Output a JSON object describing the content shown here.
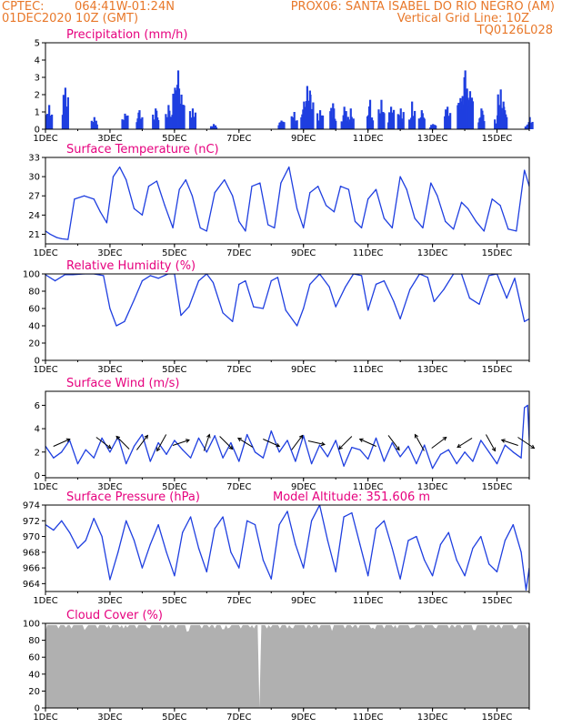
{
  "header": {
    "line1_left": "CPTEC:",
    "line1_coords": "064:41W-01:24N",
    "line1_right": "PROX06: SANTA ISABEL DO RIO NEGRO (AM)",
    "line2_left": "01DEC2020 10Z (GMT)",
    "line2_right": "Vertical Grid Line: 10Z",
    "line3_right": "TQ0126L028"
  },
  "colors": {
    "header": "#e8782a",
    "title": "#e6007e",
    "series": "#1f3fe0",
    "cloud": "#b0b0b0",
    "axis": "#000000"
  },
  "x_axis": {
    "tick_labels": [
      "1DEC",
      "3DEC",
      "5DEC",
      "7DEC",
      "9DEC",
      "11DEC",
      "13DEC",
      "15DEC"
    ],
    "tick_days": [
      0,
      2,
      4,
      6,
      8,
      10,
      12,
      14
    ],
    "range_days": [
      0,
      15
    ]
  },
  "chart_data": [
    {
      "type": "bar",
      "title": "Precipitation (mm/h)",
      "ylim": [
        0,
        5
      ],
      "yticks": [
        0,
        1,
        2,
        3,
        4,
        5
      ],
      "bursts": [
        {
          "day": 0.1,
          "peak": 1.4
        },
        {
          "day": 0.6,
          "peak": 2.4
        },
        {
          "day": 1.5,
          "peak": 0.7
        },
        {
          "day": 2.45,
          "peak": 0.9
        },
        {
          "day": 2.9,
          "peak": 1.1
        },
        {
          "day": 3.4,
          "peak": 1.2
        },
        {
          "day": 3.8,
          "peak": 1.4
        },
        {
          "day": 4.0,
          "peak": 2.4
        },
        {
          "day": 4.1,
          "peak": 3.4
        },
        {
          "day": 4.2,
          "peak": 2.0
        },
        {
          "day": 4.55,
          "peak": 1.2
        },
        {
          "day": 5.2,
          "peak": 0.3
        },
        {
          "day": 7.3,
          "peak": 0.5
        },
        {
          "day": 7.7,
          "peak": 1.0
        },
        {
          "day": 8.0,
          "peak": 1.6
        },
        {
          "day": 8.1,
          "peak": 2.5
        },
        {
          "day": 8.2,
          "peak": 2.0
        },
        {
          "day": 8.5,
          "peak": 1.1
        },
        {
          "day": 8.9,
          "peak": 1.5
        },
        {
          "day": 9.25,
          "peak": 1.3
        },
        {
          "day": 9.45,
          "peak": 1.2
        },
        {
          "day": 10.05,
          "peak": 1.7
        },
        {
          "day": 10.4,
          "peak": 1.7
        },
        {
          "day": 10.7,
          "peak": 1.3
        },
        {
          "day": 11.0,
          "peak": 1.2
        },
        {
          "day": 11.35,
          "peak": 1.6
        },
        {
          "day": 11.65,
          "peak": 1.1
        },
        {
          "day": 12.0,
          "peak": 0.3
        },
        {
          "day": 12.45,
          "peak": 1.3
        },
        {
          "day": 12.85,
          "peak": 1.8
        },
        {
          "day": 13.0,
          "peak": 3.4
        },
        {
          "day": 13.15,
          "peak": 2.2
        },
        {
          "day": 13.5,
          "peak": 1.2
        },
        {
          "day": 14.0,
          "peak": 0.8
        },
        {
          "day": 14.1,
          "peak": 2.3
        },
        {
          "day": 14.2,
          "peak": 1.3
        },
        {
          "day": 14.95,
          "peak": 0.2
        },
        {
          "day": 15.0,
          "peak": 0.7
        }
      ]
    },
    {
      "type": "line",
      "title": "Surface Temperature (nC)",
      "ylim": [
        19.5,
        33
      ],
      "yticks": [
        21,
        24,
        27,
        30,
        33
      ],
      "tick_format": "int",
      "x": [
        0,
        0.15,
        0.35,
        0.5,
        0.7,
        0.9,
        1.2,
        1.5,
        1.7,
        1.9,
        2.1,
        2.3,
        2.5,
        2.75,
        3.0,
        3.2,
        3.45,
        3.7,
        3.95,
        4.15,
        4.35,
        4.55,
        4.8,
        5.0,
        5.25,
        5.55,
        5.8,
        6.0,
        6.2,
        6.4,
        6.65,
        6.9,
        7.1,
        7.3,
        7.55,
        7.8,
        8.0,
        8.2,
        8.45,
        8.7,
        8.95,
        9.15,
        9.4,
        9.6,
        9.8,
        10.0,
        10.25,
        10.5,
        10.75,
        11.0,
        11.2,
        11.45,
        11.7,
        11.95,
        12.15,
        12.4,
        12.65,
        12.9,
        13.1,
        13.35,
        13.6,
        13.85,
        14.1,
        14.35,
        14.6,
        14.85,
        15.0
      ],
      "y": [
        21.5,
        21.0,
        20.5,
        20.3,
        20.2,
        26.5,
        27.0,
        26.5,
        24.5,
        22.8,
        30.0,
        31.5,
        29.5,
        25.0,
        24.0,
        28.5,
        29.3,
        25.5,
        22.0,
        28.0,
        29.5,
        27.0,
        22.0,
        21.5,
        27.5,
        29.5,
        27.0,
        23.0,
        21.5,
        28.5,
        29.0,
        22.5,
        22.0,
        29.0,
        31.5,
        25.0,
        22.0,
        27.5,
        28.5,
        25.5,
        24.5,
        28.5,
        28.0,
        23.0,
        22.0,
        26.5,
        28.0,
        23.5,
        22.0,
        30.0,
        28.0,
        23.5,
        22.0,
        29.0,
        27.0,
        23.0,
        21.8,
        26.0,
        25.0,
        23.0,
        21.5,
        26.5,
        25.5,
        21.8,
        21.5,
        31.0,
        28.5
      ]
    },
    {
      "type": "line",
      "title": "Relative Humidity (%)",
      "ylim": [
        0,
        100
      ],
      "yticks": [
        0,
        20,
        40,
        60,
        80,
        100
      ],
      "tick_format": "int",
      "x": [
        0,
        0.3,
        0.6,
        0.85,
        1.2,
        1.5,
        1.8,
        2.0,
        2.2,
        2.45,
        2.75,
        3.0,
        3.25,
        3.5,
        3.8,
        4.0,
        4.2,
        4.45,
        4.75,
        5.0,
        5.2,
        5.5,
        5.8,
        6.0,
        6.2,
        6.45,
        6.75,
        7.0,
        7.2,
        7.45,
        7.8,
        8.0,
        8.2,
        8.5,
        8.8,
        9.0,
        9.3,
        9.55,
        9.8,
        10.0,
        10.25,
        10.5,
        10.8,
        11.0,
        11.3,
        11.6,
        11.85,
        12.05,
        12.35,
        12.65,
        12.9,
        13.15,
        13.45,
        13.75,
        14.0,
        14.3,
        14.55,
        14.85,
        15.0
      ],
      "y": [
        99,
        92,
        99,
        99,
        100,
        100,
        98,
        60,
        40,
        45,
        70,
        92,
        98,
        95,
        100,
        100,
        52,
        62,
        92,
        100,
        90,
        55,
        45,
        88,
        92,
        62,
        60,
        92,
        96,
        58,
        40,
        60,
        88,
        100,
        85,
        62,
        85,
        100,
        98,
        58,
        88,
        92,
        68,
        48,
        82,
        100,
        96,
        68,
        82,
        100,
        100,
        72,
        65,
        98,
        100,
        72,
        95,
        45,
        48
      ]
    },
    {
      "type": "line",
      "title": "Surface Wind (m/s)",
      "ylim": [
        -0.2,
        7.2
      ],
      "yticks": [
        0,
        2,
        4,
        6
      ],
      "tick_format": "int",
      "x": [
        0,
        0.25,
        0.5,
        0.75,
        1.0,
        1.25,
        1.5,
        1.75,
        2.0,
        2.25,
        2.5,
        2.75,
        3.0,
        3.25,
        3.5,
        3.75,
        4.0,
        4.25,
        4.5,
        4.75,
        5.0,
        5.25,
        5.5,
        5.75,
        6.0,
        6.25,
        6.5,
        6.75,
        7.0,
        7.25,
        7.5,
        7.75,
        8.0,
        8.25,
        8.5,
        8.75,
        9.0,
        9.25,
        9.5,
        9.75,
        10.0,
        10.25,
        10.5,
        10.75,
        11.0,
        11.25,
        11.5,
        11.75,
        12.0,
        12.25,
        12.5,
        12.75,
        13.0,
        13.25,
        13.5,
        13.75,
        14.0,
        14.25,
        14.5,
        14.75,
        14.85,
        14.95,
        15.0
      ],
      "y": [
        2.5,
        1.5,
        2.0,
        3.0,
        1.0,
        2.2,
        1.5,
        3.2,
        2.0,
        3.3,
        1.0,
        2.5,
        3.5,
        1.2,
        2.8,
        1.8,
        3.0,
        2.2,
        1.5,
        3.2,
        2.0,
        3.4,
        1.5,
        2.8,
        1.2,
        3.5,
        2.0,
        1.5,
        3.8,
        2.0,
        3.0,
        1.2,
        3.4,
        1.0,
        2.6,
        1.6,
        3.0,
        0.8,
        2.4,
        2.2,
        1.4,
        3.2,
        1.2,
        2.8,
        1.6,
        2.5,
        1.0,
        2.6,
        0.6,
        1.8,
        2.2,
        1.0,
        2.0,
        1.2,
        3.0,
        2.0,
        1.0,
        2.6,
        2.0,
        1.5,
        5.8,
        6.0,
        3.0
      ],
      "arrows": [
        {
          "day": 0.5,
          "dir_x": 0.9,
          "dir_y": -0.4
        },
        {
          "day": 1.8,
          "dir_x": 0.8,
          "dir_y": 0.6
        },
        {
          "day": 2.4,
          "dir_x": -0.7,
          "dir_y": -0.7
        },
        {
          "day": 3.0,
          "dir_x": 0.6,
          "dir_y": -0.8
        },
        {
          "day": 3.6,
          "dir_x": -0.5,
          "dir_y": 0.9
        },
        {
          "day": 4.2,
          "dir_x": 0.9,
          "dir_y": -0.3
        },
        {
          "day": 5.0,
          "dir_x": 0.3,
          "dir_y": -0.9
        },
        {
          "day": 5.6,
          "dir_x": 0.7,
          "dir_y": 0.7
        },
        {
          "day": 6.2,
          "dir_x": -0.8,
          "dir_y": -0.5
        },
        {
          "day": 7.0,
          "dir_x": 0.9,
          "dir_y": 0.4
        },
        {
          "day": 7.8,
          "dir_x": 0.6,
          "dir_y": -0.8
        },
        {
          "day": 8.4,
          "dir_x": 0.9,
          "dir_y": 0.2
        },
        {
          "day": 9.3,
          "dir_x": -0.7,
          "dir_y": 0.7
        },
        {
          "day": 10.0,
          "dir_x": -0.9,
          "dir_y": -0.4
        },
        {
          "day": 10.8,
          "dir_x": 0.6,
          "dir_y": 0.8
        },
        {
          "day": 11.6,
          "dir_x": -0.5,
          "dir_y": -0.9
        },
        {
          "day": 12.2,
          "dir_x": 0.8,
          "dir_y": -0.6
        },
        {
          "day": 13.0,
          "dir_x": -0.8,
          "dir_y": 0.5
        },
        {
          "day": 13.8,
          "dir_x": 0.5,
          "dir_y": 0.9
        },
        {
          "day": 14.4,
          "dir_x": -0.9,
          "dir_y": -0.3
        },
        {
          "day": 14.9,
          "dir_x": 0.9,
          "dir_y": 0.6
        }
      ]
    },
    {
      "type": "line",
      "title": "Surface Pressure (hPa)",
      "annotation": "Model Altitude: 351.606 m",
      "ylim": [
        963,
        974
      ],
      "yticks": [
        964,
        966,
        968,
        970,
        972,
        974
      ],
      "tick_format": "int",
      "x": [
        0,
        0.25,
        0.5,
        0.75,
        1.0,
        1.25,
        1.5,
        1.75,
        2.0,
        2.25,
        2.5,
        2.75,
        3.0,
        3.25,
        3.5,
        3.75,
        4.0,
        4.25,
        4.5,
        4.75,
        5.0,
        5.25,
        5.5,
        5.75,
        6.0,
        6.25,
        6.5,
        6.75,
        7.0,
        7.25,
        7.5,
        7.75,
        8.0,
        8.25,
        8.5,
        8.75,
        9.0,
        9.25,
        9.5,
        9.75,
        10.0,
        10.25,
        10.5,
        10.75,
        11.0,
        11.25,
        11.5,
        11.75,
        12.0,
        12.25,
        12.5,
        12.75,
        13.0,
        13.25,
        13.5,
        13.75,
        14.0,
        14.25,
        14.5,
        14.75,
        14.9,
        15.0
      ],
      "y": [
        971.5,
        970.8,
        972.0,
        970.5,
        968.5,
        969.5,
        972.3,
        970.0,
        964.5,
        968.0,
        972.0,
        969.5,
        966.0,
        969.0,
        971.5,
        968.0,
        965.0,
        970.5,
        972.5,
        968.5,
        965.5,
        971.0,
        972.5,
        968.0,
        966.0,
        972.0,
        971.5,
        967.0,
        964.6,
        971.5,
        973.2,
        969.0,
        966.0,
        972.0,
        974.0,
        969.5,
        965.5,
        972.5,
        973.0,
        969.0,
        965.0,
        971.0,
        972.0,
        968.5,
        964.6,
        969.5,
        970.0,
        967.0,
        965.0,
        969.0,
        970.5,
        967.0,
        965.0,
        968.5,
        970.0,
        966.5,
        965.5,
        969.5,
        971.5,
        968.0,
        963.2,
        966.0
      ]
    },
    {
      "type": "area",
      "title": "Cloud Cover (%)",
      "ylim": [
        0,
        100
      ],
      "yticks": [
        0,
        20,
        40,
        60,
        80,
        100
      ],
      "tick_format": "int",
      "base_cover": 98,
      "dips": [
        {
          "day": 1.2,
          "value": 92
        },
        {
          "day": 2.3,
          "value": 95
        },
        {
          "day": 4.4,
          "value": 90
        },
        {
          "day": 5.5,
          "value": 93
        },
        {
          "day": 6.65,
          "value": 0
        },
        {
          "day": 7.5,
          "value": 94
        },
        {
          "day": 10.2,
          "value": 93
        },
        {
          "day": 11.4,
          "value": 95
        },
        {
          "day": 13.3,
          "value": 92
        },
        {
          "day": 14.6,
          "value": 94
        }
      ]
    }
  ]
}
